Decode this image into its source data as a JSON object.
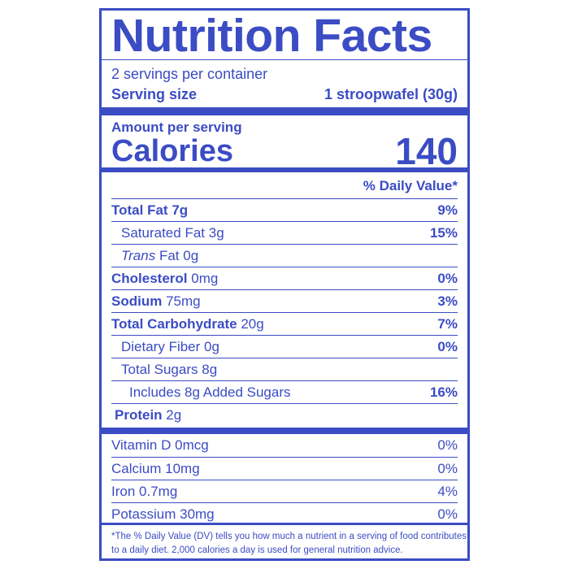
{
  "title": "Nutrition Facts",
  "servings": "2 servings per container",
  "serving_size": {
    "label": "Serving size",
    "value": "1 stroopwafel (30g)"
  },
  "amount_per_serving": "Amount per serving",
  "calories": {
    "label": "Calories",
    "value": 140
  },
  "daily_value_header": "% Daily Value*",
  "nutrients": [
    {
      "name": "Total Fat",
      "amount": "7g",
      "dv": "9%"
    },
    {
      "name": "Saturated Fat",
      "amount": "3g",
      "dv": "15%"
    },
    {
      "name_italic": "Trans",
      "name": "Fat",
      "amount": "0g"
    },
    {
      "name": "Cholesterol",
      "amount": "0mg",
      "dv": "0%"
    },
    {
      "name": "Sodium",
      "amount": "75mg",
      "dv": "3%"
    },
    {
      "name": "Total Carbohydrate",
      "amount": "20g",
      "dv": "7%"
    },
    {
      "name": "Dietary Fiber",
      "amount": "0g",
      "dv": "0%"
    },
    {
      "name": "Total Sugars",
      "amount": "8g"
    },
    {
      "name": "Includes 8g Added Sugars",
      "dv": "16%"
    },
    {
      "name": "Protein",
      "amount": "2g"
    }
  ],
  "vitamins": [
    {
      "name": "Vitamin D",
      "amount": "0mcg",
      "dv": "0%"
    },
    {
      "name": "Calcium",
      "amount": "10mg",
      "dv": "0%"
    },
    {
      "name": "Iron",
      "amount": "0.7mg",
      "dv": "4%"
    },
    {
      "name": "Potassium",
      "amount": "30mg",
      "dv": "0%"
    }
  ],
  "footnote": [
    "*The % Daily Value (DV) tells you how much a nutrient in a serving of food contributes",
    "to a daily diet. 2,000 calories a day is used for general nutrition advice."
  ]
}
